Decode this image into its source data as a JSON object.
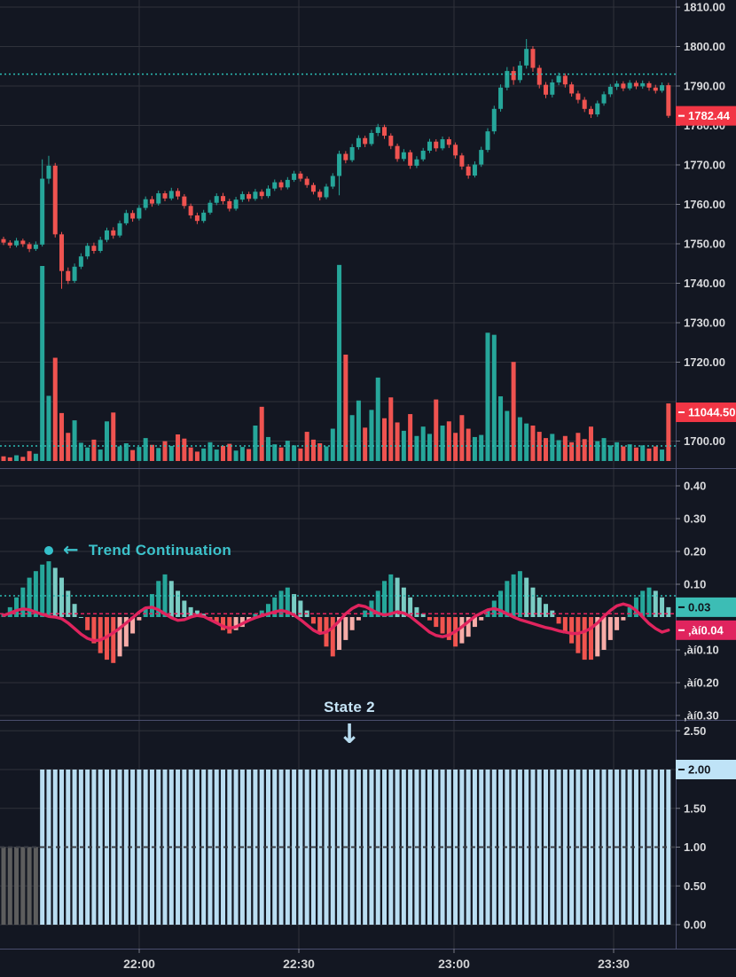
{
  "meta": {
    "app": "trading-chart",
    "theme": "dark"
  },
  "colors": {
    "background": "#131722",
    "grid": "#2f323b",
    "separator": "#4a4e6e",
    "axis_text": "#d8d9dc",
    "time_text": "#d1d2d4",
    "tick": "#787b86",
    "candle_up": "#26a69a",
    "candle_down": "#ef5350",
    "hist_up": "#26a69a",
    "hist_up_weak": "#7accc4",
    "hist_down": "#f0544f",
    "hist_down_weak": "#f7aca7",
    "signal_line": "#e0245e",
    "dotted_teal": "#2cbdb4",
    "dashed_pink": "#e0245e",
    "badge_red_bg": "#f23645",
    "badge_red_fg": "#ffffff",
    "badge_teal_bg": "#3cbdb5",
    "badge_teal_fg": "#10141c",
    "badge_pink_bg": "#e0245e",
    "badge_pink_fg": "#ffffff",
    "badge_blue_bg": "#bfe3f7",
    "badge_blue_fg": "#10141c",
    "state_bar": "#b9ddf1",
    "state_bar_prev": "#5d5d5d",
    "state_dash_overlay": "#3b3e45",
    "annotation_teal": "#3cc2cb",
    "annotation_blue": "#c6e5f7"
  },
  "axes": {
    "price_labels": [
      {
        "v": 1810,
        "t": "1810.00"
      },
      {
        "v": 1800,
        "t": "1800.00"
      },
      {
        "v": 1790,
        "t": "1790.00"
      },
      {
        "v": 1780,
        "t": "1780.00"
      },
      {
        "v": 1770,
        "t": "1770.00"
      },
      {
        "v": 1760,
        "t": "1760.00"
      },
      {
        "v": 1750,
        "t": "1750.00"
      },
      {
        "v": 1740,
        "t": "1740.00"
      },
      {
        "v": 1730,
        "t": "1730.00"
      },
      {
        "v": 1720,
        "t": "1720.00"
      },
      {
        "v": 1700,
        "t": "1700.00"
      }
    ],
    "mid_labels": [
      {
        "v": 0.4,
        "t": "0.40"
      },
      {
        "v": 0.3,
        "t": "0.30"
      },
      {
        "v": 0.2,
        "t": "0.20"
      },
      {
        "v": 0.1,
        "t": "0.10"
      },
      {
        "v": -0.1,
        "t": "‚àí0.10"
      },
      {
        "v": -0.2,
        "t": "‚àí0.20"
      },
      {
        "v": -0.3,
        "t": "‚àí0.30"
      }
    ],
    "low_labels": [
      {
        "v": 2.5,
        "t": "2.50"
      },
      {
        "v": 1.5,
        "t": "1.50"
      },
      {
        "v": 1.0,
        "t": "1.00"
      },
      {
        "v": 0.5,
        "t": "0.50"
      },
      {
        "v": 0.0,
        "t": "0.00"
      }
    ],
    "time_labels": [
      {
        "t": "22:00",
        "x": 157
      },
      {
        "t": "22:30",
        "x": 337
      },
      {
        "t": "23:00",
        "x": 512
      },
      {
        "t": "23:30",
        "x": 692
      }
    ]
  },
  "badges": {
    "last_price": {
      "text": "1782.44",
      "value": 1782.44
    },
    "last_volume": {
      "text": "11044.50",
      "value": 11044.5
    },
    "last_hist": {
      "text": "0.03",
      "value": 0.03
    },
    "last_signal": {
      "text": "‚àí0.04",
      "value": -0.04
    },
    "last_state": {
      "text": "2.00",
      "value": 2.0
    }
  },
  "annotations": {
    "trend_continuation": {
      "label": "Trend Continuation",
      "arrow": "←"
    },
    "state": {
      "label": "State 2",
      "arrow": "↓"
    }
  },
  "chart_data": [
    {
      "type": "candlestick",
      "panel": "main",
      "title": "",
      "ylim": [
        1693,
        1812
      ],
      "grid_levels": [
        1810,
        1800,
        1790,
        1780,
        1770,
        1760,
        1750,
        1740,
        1730,
        1720,
        1710,
        1700
      ],
      "dotted_level_price": 1793,
      "ohlc": [
        [
          1751.2,
          1751.8,
          1749.7,
          1750.3
        ],
        [
          1750.3,
          1750.9,
          1748.9,
          1749.6
        ],
        [
          1749.6,
          1751.5,
          1749.1,
          1750.8
        ],
        [
          1750.8,
          1751.3,
          1749.2,
          1749.9
        ],
        [
          1749.9,
          1750.4,
          1747.9,
          1748.7
        ],
        [
          1748.7,
          1750.6,
          1748.2,
          1749.8
        ],
        [
          1749.8,
          1771.4,
          1749.3,
          1766.5
        ],
        [
          1766.5,
          1772.3,
          1765.2,
          1769.8
        ],
        [
          1769.8,
          1770.5,
          1751.6,
          1752.4
        ],
        [
          1752.4,
          1753.0,
          1738.6,
          1743.1
        ],
        [
          1743.1,
          1744.0,
          1739.8,
          1740.6
        ],
        [
          1740.6,
          1745.0,
          1740.1,
          1744.2
        ],
        [
          1744.2,
          1747.6,
          1743.6,
          1746.8
        ],
        [
          1746.8,
          1750.2,
          1746.1,
          1749.5
        ],
        [
          1749.5,
          1750.3,
          1747.5,
          1748.2
        ],
        [
          1748.2,
          1751.8,
          1747.7,
          1751.0
        ],
        [
          1751.0,
          1754.1,
          1750.4,
          1753.4
        ],
        [
          1753.4,
          1754.2,
          1751.3,
          1752.1
        ],
        [
          1752.1,
          1755.9,
          1751.6,
          1755.2
        ],
        [
          1755.2,
          1758.6,
          1754.7,
          1757.8
        ],
        [
          1757.8,
          1758.5,
          1755.6,
          1756.4
        ],
        [
          1756.4,
          1759.8,
          1755.9,
          1759.1
        ],
        [
          1759.1,
          1762.0,
          1758.5,
          1761.3
        ],
        [
          1761.3,
          1762.1,
          1759.4,
          1760.2
        ],
        [
          1760.2,
          1763.5,
          1759.7,
          1762.8
        ],
        [
          1762.8,
          1763.4,
          1760.8,
          1761.5
        ],
        [
          1761.5,
          1764.2,
          1761.0,
          1763.4
        ],
        [
          1763.4,
          1764.1,
          1761.2,
          1762.0
        ],
        [
          1762.0,
          1762.6,
          1758.9,
          1759.6
        ],
        [
          1759.6,
          1760.2,
          1756.4,
          1757.2
        ],
        [
          1757.2,
          1757.9,
          1755.0,
          1755.8
        ],
        [
          1755.8,
          1758.6,
          1755.3,
          1757.9
        ],
        [
          1757.9,
          1761.1,
          1757.4,
          1760.4
        ],
        [
          1760.4,
          1762.8,
          1759.8,
          1762.1
        ],
        [
          1762.1,
          1762.9,
          1760.0,
          1760.8
        ],
        [
          1760.8,
          1761.4,
          1758.2,
          1758.9
        ],
        [
          1758.9,
          1761.9,
          1758.4,
          1761.2
        ],
        [
          1761.2,
          1763.3,
          1760.6,
          1762.6
        ],
        [
          1762.6,
          1763.2,
          1760.7,
          1761.4
        ],
        [
          1761.4,
          1763.9,
          1760.9,
          1763.2
        ],
        [
          1763.2,
          1763.8,
          1761.3,
          1762.1
        ],
        [
          1762.1,
          1764.8,
          1761.6,
          1764.0
        ],
        [
          1764.0,
          1766.3,
          1763.4,
          1765.6
        ],
        [
          1765.6,
          1766.2,
          1763.6,
          1764.3
        ],
        [
          1764.3,
          1766.9,
          1763.8,
          1766.2
        ],
        [
          1766.2,
          1768.5,
          1765.7,
          1767.8
        ],
        [
          1767.8,
          1768.4,
          1765.8,
          1766.5
        ],
        [
          1766.5,
          1767.1,
          1764.2,
          1764.9
        ],
        [
          1764.9,
          1765.5,
          1762.5,
          1763.2
        ],
        [
          1763.2,
          1763.8,
          1761.0,
          1761.8
        ],
        [
          1761.8,
          1765.2,
          1761.3,
          1764.5
        ],
        [
          1764.5,
          1767.9,
          1763.9,
          1767.2
        ],
        [
          1767.2,
          1773.6,
          1762.3,
          1772.8
        ],
        [
          1772.8,
          1773.5,
          1770.4,
          1771.2
        ],
        [
          1771.2,
          1775.3,
          1770.7,
          1774.5
        ],
        [
          1774.5,
          1777.5,
          1773.9,
          1776.8
        ],
        [
          1776.8,
          1777.4,
          1774.5,
          1775.3
        ],
        [
          1775.3,
          1778.9,
          1774.8,
          1778.1
        ],
        [
          1778.1,
          1780.4,
          1777.3,
          1779.6
        ],
        [
          1779.6,
          1780.2,
          1776.6,
          1777.4
        ],
        [
          1777.4,
          1778.0,
          1774.0,
          1774.8
        ],
        [
          1774.8,
          1775.4,
          1770.8,
          1771.5
        ],
        [
          1771.5,
          1774.0,
          1770.9,
          1773.2
        ],
        [
          1773.2,
          1773.8,
          1769.0,
          1769.8
        ],
        [
          1769.8,
          1772.2,
          1769.2,
          1771.4
        ],
        [
          1771.4,
          1774.3,
          1770.9,
          1773.6
        ],
        [
          1773.6,
          1776.6,
          1773.0,
          1775.9
        ],
        [
          1775.9,
          1776.5,
          1773.4,
          1774.2
        ],
        [
          1774.2,
          1777.2,
          1773.7,
          1776.5
        ],
        [
          1776.5,
          1777.1,
          1774.3,
          1775.1
        ],
        [
          1775.1,
          1775.7,
          1771.6,
          1772.4
        ],
        [
          1772.4,
          1773.0,
          1768.8,
          1769.6
        ],
        [
          1769.6,
          1770.2,
          1766.5,
          1767.3
        ],
        [
          1767.3,
          1770.9,
          1766.8,
          1770.1
        ],
        [
          1770.1,
          1774.6,
          1769.5,
          1773.8
        ],
        [
          1773.8,
          1779.3,
          1773.2,
          1778.5
        ],
        [
          1778.5,
          1785.0,
          1777.8,
          1784.2
        ],
        [
          1784.2,
          1790.4,
          1783.5,
          1789.6
        ],
        [
          1789.6,
          1794.8,
          1788.9,
          1793.8
        ],
        [
          1793.8,
          1794.9,
          1790.3,
          1791.5
        ],
        [
          1791.5,
          1796.3,
          1790.8,
          1795.2
        ],
        [
          1795.2,
          1801.9,
          1794.4,
          1799.4
        ],
        [
          1799.4,
          1800.1,
          1793.6,
          1794.6
        ],
        [
          1794.6,
          1795.3,
          1789.4,
          1790.3
        ],
        [
          1790.3,
          1791.0,
          1786.9,
          1787.8
        ],
        [
          1787.8,
          1791.7,
          1787.1,
          1790.9
        ],
        [
          1790.9,
          1793.4,
          1790.2,
          1792.6
        ],
        [
          1792.6,
          1793.2,
          1789.6,
          1790.4
        ],
        [
          1790.4,
          1791.0,
          1787.3,
          1788.1
        ],
        [
          1788.1,
          1788.8,
          1785.6,
          1786.5
        ],
        [
          1786.5,
          1787.2,
          1783.4,
          1784.2
        ],
        [
          1784.2,
          1784.9,
          1781.9,
          1782.8
        ],
        [
          1782.8,
          1786.3,
          1782.2,
          1785.6
        ],
        [
          1785.6,
          1788.6,
          1785.0,
          1787.9
        ],
        [
          1787.9,
          1790.5,
          1787.2,
          1789.8
        ],
        [
          1789.8,
          1791.3,
          1789.0,
          1790.6
        ],
        [
          1790.6,
          1791.2,
          1788.7,
          1789.4
        ],
        [
          1789.4,
          1791.5,
          1788.9,
          1790.8
        ],
        [
          1790.8,
          1791.4,
          1789.2,
          1789.9
        ],
        [
          1789.9,
          1791.4,
          1789.3,
          1790.7
        ],
        [
          1790.7,
          1791.2,
          1788.8,
          1789.6
        ],
        [
          1789.6,
          1790.3,
          1788.1,
          1788.8
        ],
        [
          1788.8,
          1790.9,
          1788.3,
          1790.2
        ],
        [
          1790.2,
          1790.8,
          1781.9,
          1782.44
        ]
      ]
    },
    {
      "type": "bar",
      "panel": "main-volume",
      "name": "volume",
      "color_rule": "follow-candle",
      "dotted_ma_level": 2900,
      "values": [
        900,
        700,
        1100,
        800,
        1900,
        1400,
        37400,
        12500,
        19800,
        9200,
        5400,
        7800,
        3500,
        2600,
        4100,
        2200,
        7600,
        9300,
        2800,
        3400,
        2100,
        2700,
        4400,
        3100,
        2500,
        3800,
        2900,
        5100,
        4300,
        2600,
        1800,
        2400,
        3600,
        2200,
        2900,
        3300,
        2000,
        2700,
        2300,
        6800,
        10400,
        4600,
        3200,
        2600,
        3900,
        3000,
        2400,
        5600,
        4100,
        3400,
        2800,
        6200,
        37600,
        20400,
        8800,
        11600,
        6400,
        9800,
        16000,
        8200,
        12200,
        7400,
        5800,
        9000,
        4800,
        6600,
        5200,
        11800,
        6800,
        7600,
        5400,
        8800,
        6200,
        4600,
        5000,
        24600,
        24200,
        12400,
        9600,
        19000,
        8400,
        7200,
        6800,
        5600,
        4400,
        5200,
        4000,
        4800,
        3600,
        5400,
        4200,
        6600,
        3800,
        4400,
        3000,
        3600,
        2800,
        3200,
        2600,
        3000,
        2400,
        2800,
        2200,
        11044.5
      ]
    },
    {
      "type": "macd-histogram",
      "panel": "middle",
      "ylim": [
        -0.31,
        0.45
      ],
      "grid_levels": [
        0.4,
        0.3,
        0.2,
        0.1,
        -0.1,
        -0.2,
        -0.3
      ],
      "levels": {
        "teal_dotted": 0.065,
        "pink_dashed": 0.01
      },
      "hist": [
        0.01,
        0.03,
        0.06,
        0.09,
        0.12,
        0.14,
        0.16,
        0.17,
        0.15,
        0.12,
        0.08,
        0.04,
        0.0,
        -0.04,
        -0.08,
        -0.11,
        -0.13,
        -0.14,
        -0.12,
        -0.09,
        -0.05,
        -0.01,
        0.03,
        0.07,
        0.11,
        0.13,
        0.11,
        0.08,
        0.05,
        0.03,
        0.02,
        0.01,
        -0.01,
        -0.02,
        -0.04,
        -0.05,
        -0.04,
        -0.03,
        -0.01,
        0.01,
        0.02,
        0.04,
        0.06,
        0.08,
        0.09,
        0.07,
        0.05,
        0.02,
        -0.02,
        -0.05,
        -0.09,
        -0.12,
        -0.1,
        -0.07,
        -0.04,
        -0.01,
        0.02,
        0.05,
        0.08,
        0.11,
        0.13,
        0.12,
        0.09,
        0.06,
        0.03,
        0.01,
        -0.01,
        -0.03,
        -0.05,
        -0.07,
        -0.09,
        -0.08,
        -0.06,
        -0.03,
        -0.01,
        0.02,
        0.05,
        0.08,
        0.11,
        0.13,
        0.14,
        0.12,
        0.09,
        0.06,
        0.04,
        0.02,
        -0.02,
        -0.05,
        -0.08,
        -0.11,
        -0.13,
        -0.13,
        -0.12,
        -0.1,
        -0.07,
        -0.04,
        -0.01,
        0.03,
        0.06,
        0.08,
        0.09,
        0.08,
        0.06,
        0.03
      ],
      "signal": [
        0.005,
        0.012,
        0.02,
        0.025,
        0.022,
        0.015,
        0.008,
        0.002,
        0,
        -0.005,
        -0.018,
        -0.035,
        -0.052,
        -0.065,
        -0.072,
        -0.07,
        -0.06,
        -0.048,
        -0.034,
        -0.018,
        -0.002,
        0.015,
        0.028,
        0.03,
        0.022,
        0.01,
        -0.002,
        -0.01,
        -0.008,
        0,
        0.005,
        0.002,
        -0.008,
        -0.018,
        -0.028,
        -0.034,
        -0.03,
        -0.02,
        -0.01,
        -0.002,
        0.004,
        0.01,
        0.016,
        0.02,
        0.016,
        0.006,
        -0.008,
        -0.024,
        -0.04,
        -0.05,
        -0.046,
        -0.032,
        -0.012,
        0.01,
        0.026,
        0.036,
        0.032,
        0.022,
        0.012,
        0.006,
        0.01,
        0.016,
        0.012,
        0.002,
        -0.014,
        -0.03,
        -0.046,
        -0.056,
        -0.06,
        -0.055,
        -0.044,
        -0.03,
        -0.014,
        0.002,
        0.012,
        0.022,
        0.026,
        0.02,
        0.01,
        0,
        -0.008,
        -0.014,
        -0.02,
        -0.026,
        -0.032,
        -0.036,
        -0.042,
        -0.046,
        -0.05,
        -0.05,
        -0.044,
        -0.034,
        -0.018,
        0.002,
        0.02,
        0.034,
        0.04,
        0.034,
        0.02,
        0,
        -0.02,
        -0.035,
        -0.046,
        -0.04
      ],
      "marker": {
        "shape": "dot",
        "x_index": 8,
        "value": 0.2
      }
    },
    {
      "type": "bar",
      "panel": "bottom",
      "name": "state",
      "ylim": [
        -0.31,
        2.64
      ],
      "grid_levels": [
        2.5,
        2.0,
        1.5,
        1.0,
        0.5,
        0.0
      ],
      "dashed_level": 1.0,
      "runs": [
        {
          "value": 1,
          "count": 6
        },
        {
          "value": 2,
          "count": 98
        }
      ]
    }
  ]
}
